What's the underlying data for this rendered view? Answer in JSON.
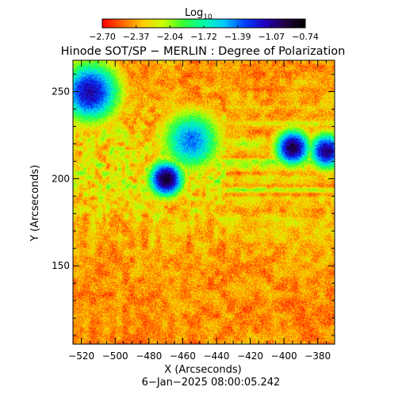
{
  "colorbar": {
    "label_main": "Log",
    "label_sub": "10",
    "ticks": [
      "−2.70",
      "−2.37",
      "−2.04",
      "−1.72",
      "−1.39",
      "−1.07",
      "−0.74"
    ],
    "range": [
      -2.7,
      -0.74
    ],
    "colormap": "rainbow",
    "colors": [
      "#ff0000",
      "#ff6600",
      "#ffcc00",
      "#ccff00",
      "#33ff33",
      "#00ffaa",
      "#00c8ff",
      "#0040ff",
      "#2000c0",
      "#200040",
      "#000000"
    ]
  },
  "chart_data": {
    "type": "heatmap",
    "title": "Hinode SOT/SP − MERLIN : Degree of Polarization",
    "xlabel": "X (Arcseconds)",
    "ylabel": "Y (Arcseconds)",
    "xlim": [
      -525,
      -370
    ],
    "ylim": [
      105,
      268
    ],
    "x_ticks": [
      -520,
      -500,
      -480,
      -460,
      -440,
      -420,
      -400,
      -380
    ],
    "x_tick_labels": [
      "−520",
      "−500",
      "−480",
      "−460",
      "−440",
      "−420",
      "−400",
      "−380"
    ],
    "y_ticks": [
      150,
      200,
      250
    ],
    "y_tick_labels": [
      "150",
      "200",
      "250"
    ],
    "value_scale": "log10",
    "features": [
      {
        "x": -470,
        "y": 200,
        "value": -0.85,
        "kind": "spot"
      },
      {
        "x": -395,
        "y": 218,
        "value": -0.9,
        "kind": "spot"
      },
      {
        "x": -375,
        "y": 216,
        "value": -1.0,
        "kind": "spot"
      },
      {
        "x": -515,
        "y": 250,
        "value": -1.1,
        "kind": "plage"
      },
      {
        "x": -455,
        "y": 222,
        "value": -1.4,
        "kind": "plage"
      }
    ],
    "timestamp": "6−Jan−2025 08:00:05.242"
  }
}
